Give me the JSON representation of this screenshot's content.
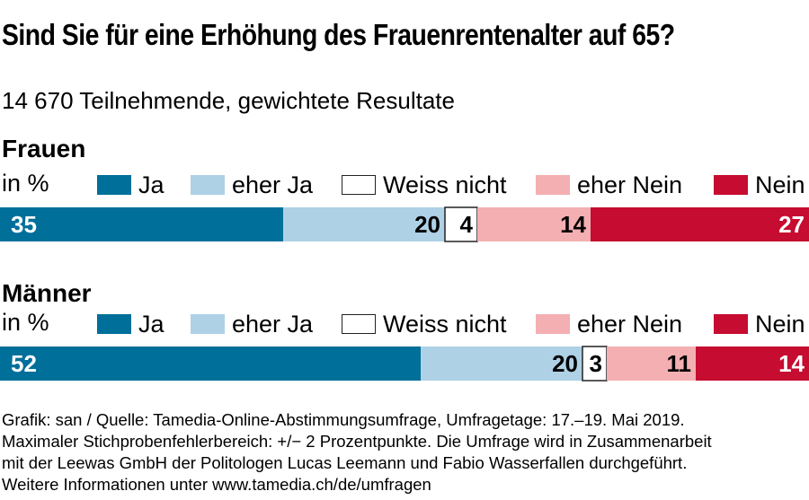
{
  "title": "Sind Sie für eine Erhöhung des Frauenrentenalter auf 65?",
  "subtitle": "14 670 Teilnehmende, gewichtete Resultate",
  "colors": {
    "ja": "#006f9a",
    "eher_ja": "#aed1e6",
    "weiss_nicht": "#ffffff",
    "eher_nein": "#f3afb2",
    "nein": "#c60c30",
    "outline": "#222222"
  },
  "chart_data": [
    {
      "type": "bar",
      "orientation": "horizontal-stacked",
      "group": "Frauen",
      "unit": "in %",
      "legend": [
        "Ja",
        "eher Ja",
        "Weiss nicht",
        "eher Nein",
        "Nein"
      ],
      "series": [
        {
          "name": "Ja",
          "value": 35
        },
        {
          "name": "eher Ja",
          "value": 20
        },
        {
          "name": "Weiss nicht",
          "value": 4
        },
        {
          "name": "eher Nein",
          "value": 14
        },
        {
          "name": "Nein",
          "value": 27
        }
      ]
    },
    {
      "type": "bar",
      "orientation": "horizontal-stacked",
      "group": "Männer",
      "unit": "in %",
      "legend": [
        "Ja",
        "eher Ja",
        "Weiss nicht",
        "eher Nein",
        "Nein"
      ],
      "series": [
        {
          "name": "Ja",
          "value": 52
        },
        {
          "name": "eher Ja",
          "value": 20
        },
        {
          "name": "Weiss nicht",
          "value": 3
        },
        {
          "name": "eher Nein",
          "value": 11
        },
        {
          "name": "Nein",
          "value": 14
        }
      ]
    }
  ],
  "footnote": [
    "Grafik: san / Quelle: Tamedia-Online-Abstimmungsumfrage, Umfragetage: 17.–19. Mai 2019.",
    "Maximaler Stichprobenfehlerbereich: +/− 2 Prozentpunkte. Die Umfrage wird in Zusammenarbeit",
    "mit der Leewas GmbH der Politologen Lucas Leemann und Fabio Wasserfallen durchgeführt.",
    "Weitere Informationen unter www.tamedia.ch/de/umfragen"
  ]
}
